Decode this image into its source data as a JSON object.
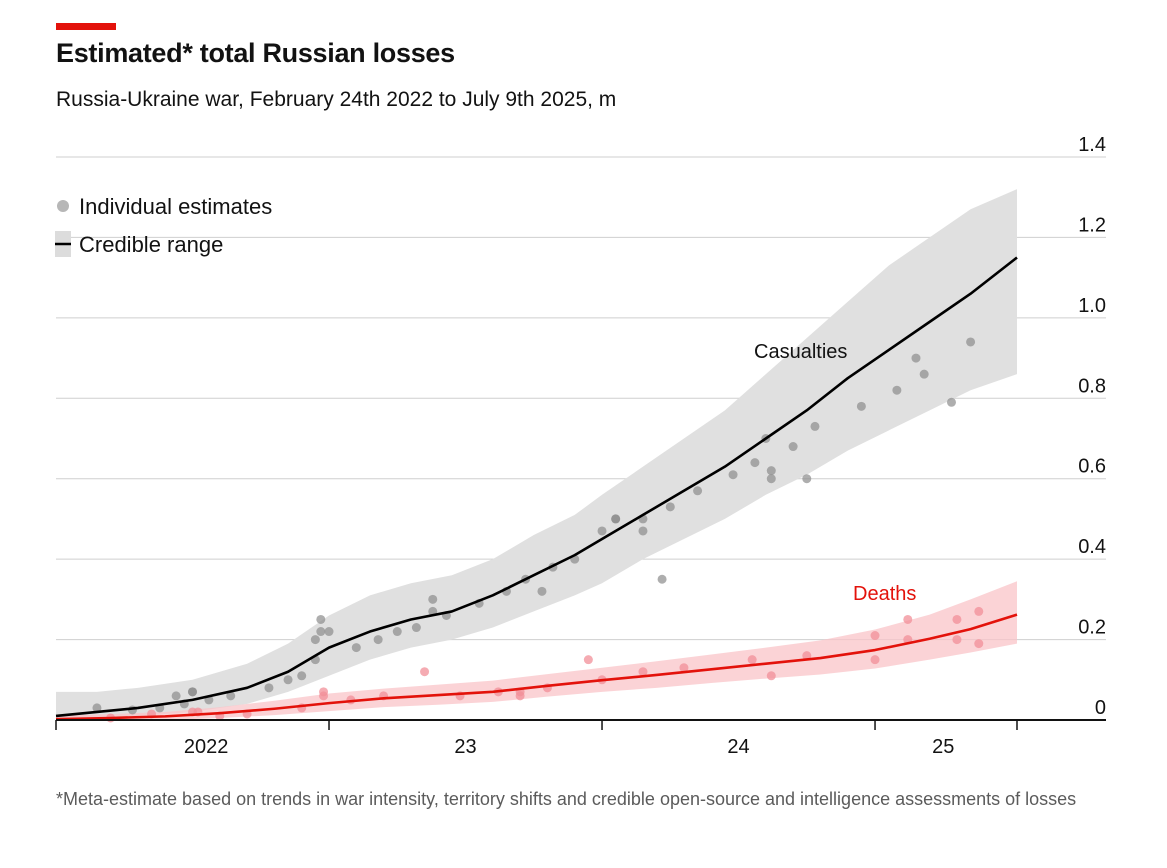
{
  "header": {
    "title": "Estimated* total Russian losses",
    "subtitle": "Russia-Ukraine war, February 24th 2022 to July 9th 2025, m"
  },
  "footnote": "*Meta-estimate based on trends in war intensity, territory shifts and credible open-source and intelligence assessments of losses",
  "colors": {
    "accent": "#e3120b",
    "casualties_line": "#000000",
    "casualties_band": "#e0e0e0",
    "casualties_dots": "#8c8c8c",
    "deaths_line": "#e3120b",
    "deaths_band": "#f9c4c8",
    "deaths_dots": "#f28f98"
  },
  "chart_data": {
    "type": "line",
    "ylim": [
      0,
      1.4
    ],
    "xlim": [
      2022.0,
      2025.75
    ],
    "y_ticks": [
      {
        "value": 0,
        "label": "0"
      },
      {
        "value": 0.2,
        "label": "0.2"
      },
      {
        "value": 0.4,
        "label": "0.4"
      },
      {
        "value": 0.6,
        "label": "0.6"
      },
      {
        "value": 0.8,
        "label": "0.8"
      },
      {
        "value": 1.0,
        "label": "1.0"
      },
      {
        "value": 1.2,
        "label": "1.2"
      },
      {
        "value": 1.4,
        "label": "1.4"
      }
    ],
    "x_ticks": [
      2022,
      2023,
      2024,
      2025
    ],
    "x_tick_labels": [
      {
        "label": "2022",
        "center": 2022.55
      },
      {
        "label": "23",
        "center": 2023.5
      },
      {
        "label": "24",
        "center": 2024.5
      },
      {
        "label": "25",
        "center": 2025.25
      }
    ],
    "grid": true,
    "legend": {
      "position": "top-left",
      "items": [
        {
          "label": "Individual estimates",
          "marker": "dot"
        },
        {
          "label": "Credible range",
          "marker": "line-band"
        }
      ]
    },
    "series": [
      {
        "name": "Casualties",
        "x": [
          2022.0,
          2022.15,
          2022.3,
          2022.5,
          2022.7,
          2022.85,
          2023.0,
          2023.15,
          2023.3,
          2023.45,
          2023.6,
          2023.75,
          2023.9,
          2024.0,
          2024.15,
          2024.3,
          2024.45,
          2024.6,
          2024.75,
          2024.9,
          2025.05,
          2025.2,
          2025.35,
          2025.52
        ],
        "values": [
          0.01,
          0.02,
          0.03,
          0.05,
          0.08,
          0.12,
          0.18,
          0.22,
          0.25,
          0.27,
          0.31,
          0.36,
          0.41,
          0.45,
          0.51,
          0.57,
          0.63,
          0.7,
          0.77,
          0.85,
          0.92,
          0.99,
          1.06,
          1.15
        ],
        "band_low": [
          0.0,
          0.005,
          0.01,
          0.02,
          0.04,
          0.07,
          0.11,
          0.15,
          0.18,
          0.2,
          0.23,
          0.27,
          0.31,
          0.34,
          0.4,
          0.45,
          0.5,
          0.56,
          0.61,
          0.67,
          0.72,
          0.77,
          0.82,
          0.86
        ],
        "band_high": [
          0.07,
          0.07,
          0.08,
          0.1,
          0.14,
          0.19,
          0.26,
          0.31,
          0.34,
          0.36,
          0.4,
          0.46,
          0.51,
          0.56,
          0.63,
          0.7,
          0.77,
          0.86,
          0.95,
          1.04,
          1.13,
          1.2,
          1.27,
          1.32
        ]
      },
      {
        "name": "Deaths",
        "x": [
          2022.0,
          2022.2,
          2022.4,
          2022.6,
          2022.8,
          2023.0,
          2023.2,
          2023.4,
          2023.6,
          2023.8,
          2024.0,
          2024.2,
          2024.4,
          2024.6,
          2024.8,
          2025.0,
          2025.2,
          2025.35,
          2025.52
        ],
        "values": [
          0.002,
          0.005,
          0.009,
          0.017,
          0.028,
          0.042,
          0.054,
          0.062,
          0.07,
          0.085,
          0.099,
          0.112,
          0.126,
          0.14,
          0.154,
          0.174,
          0.202,
          0.226,
          0.262
        ],
        "band_low": [
          0.0,
          0.0,
          0.0,
          0.005,
          0.012,
          0.022,
          0.032,
          0.038,
          0.045,
          0.058,
          0.07,
          0.08,
          0.092,
          0.103,
          0.113,
          0.128,
          0.15,
          0.168,
          0.19
        ],
        "band_high": [
          0.01,
          0.015,
          0.02,
          0.032,
          0.048,
          0.066,
          0.078,
          0.088,
          0.098,
          0.114,
          0.13,
          0.146,
          0.163,
          0.18,
          0.198,
          0.225,
          0.262,
          0.3,
          0.345
        ]
      }
    ],
    "estimates": {
      "casualties": [
        [
          2022.15,
          0.03
        ],
        [
          2022.28,
          0.025
        ],
        [
          2022.38,
          0.03
        ],
        [
          2022.44,
          0.06
        ],
        [
          2022.47,
          0.04
        ],
        [
          2022.5,
          0.07
        ],
        [
          2022.5,
          0.07
        ],
        [
          2022.56,
          0.05
        ],
        [
          2022.64,
          0.06
        ],
        [
          2022.78,
          0.08
        ],
        [
          2022.85,
          0.1
        ],
        [
          2022.9,
          0.11
        ],
        [
          2022.95,
          0.15
        ],
        [
          2022.95,
          0.2
        ],
        [
          2022.97,
          0.22
        ],
        [
          2022.97,
          0.25
        ],
        [
          2023.0,
          0.22
        ],
        [
          2023.1,
          0.18
        ],
        [
          2023.18,
          0.2
        ],
        [
          2023.25,
          0.22
        ],
        [
          2023.32,
          0.23
        ],
        [
          2023.38,
          0.27
        ],
        [
          2023.38,
          0.3
        ],
        [
          2023.43,
          0.26
        ],
        [
          2023.55,
          0.29
        ],
        [
          2023.65,
          0.32
        ],
        [
          2023.72,
          0.35
        ],
        [
          2023.78,
          0.32
        ],
        [
          2023.82,
          0.38
        ],
        [
          2023.9,
          0.4
        ],
        [
          2024.0,
          0.47
        ],
        [
          2024.05,
          0.5
        ],
        [
          2024.05,
          0.5
        ],
        [
          2024.15,
          0.47
        ],
        [
          2024.15,
          0.5
        ],
        [
          2024.22,
          0.35
        ],
        [
          2024.25,
          0.53
        ],
        [
          2024.35,
          0.57
        ],
        [
          2024.48,
          0.61
        ],
        [
          2024.56,
          0.64
        ],
        [
          2024.62,
          0.62
        ],
        [
          2024.62,
          0.6
        ],
        [
          2024.6,
          0.7
        ],
        [
          2024.7,
          0.68
        ],
        [
          2024.75,
          0.6
        ],
        [
          2024.78,
          0.73
        ],
        [
          2024.95,
          0.78
        ],
        [
          2025.08,
          0.82
        ],
        [
          2025.18,
          0.86
        ],
        [
          2025.15,
          0.9
        ],
        [
          2025.35,
          0.94
        ],
        [
          2025.28,
          0.79
        ]
      ],
      "deaths": [
        [
          2022.2,
          0.005
        ],
        [
          2022.35,
          0.015
        ],
        [
          2022.5,
          0.02
        ],
        [
          2022.52,
          0.02
        ],
        [
          2022.6,
          0.01
        ],
        [
          2022.7,
          0.015
        ],
        [
          2022.9,
          0.03
        ],
        [
          2022.98,
          0.06
        ],
        [
          2022.98,
          0.07
        ],
        [
          2023.08,
          0.05
        ],
        [
          2023.2,
          0.06
        ],
        [
          2023.35,
          0.12
        ],
        [
          2023.48,
          0.06
        ],
        [
          2023.62,
          0.07
        ],
        [
          2023.7,
          0.07
        ],
        [
          2023.7,
          0.06
        ],
        [
          2023.8,
          0.08
        ],
        [
          2023.95,
          0.15
        ],
        [
          2024.0,
          0.1
        ],
        [
          2024.15,
          0.12
        ],
        [
          2024.3,
          0.13
        ],
        [
          2024.55,
          0.15
        ],
        [
          2024.62,
          0.11
        ],
        [
          2024.75,
          0.16
        ],
        [
          2025.0,
          0.21
        ],
        [
          2025.0,
          0.15
        ],
        [
          2025.12,
          0.2
        ],
        [
          2025.12,
          0.25
        ],
        [
          2025.3,
          0.2
        ],
        [
          2025.3,
          0.25
        ],
        [
          2025.38,
          0.27
        ],
        [
          2025.38,
          0.19
        ]
      ]
    }
  }
}
